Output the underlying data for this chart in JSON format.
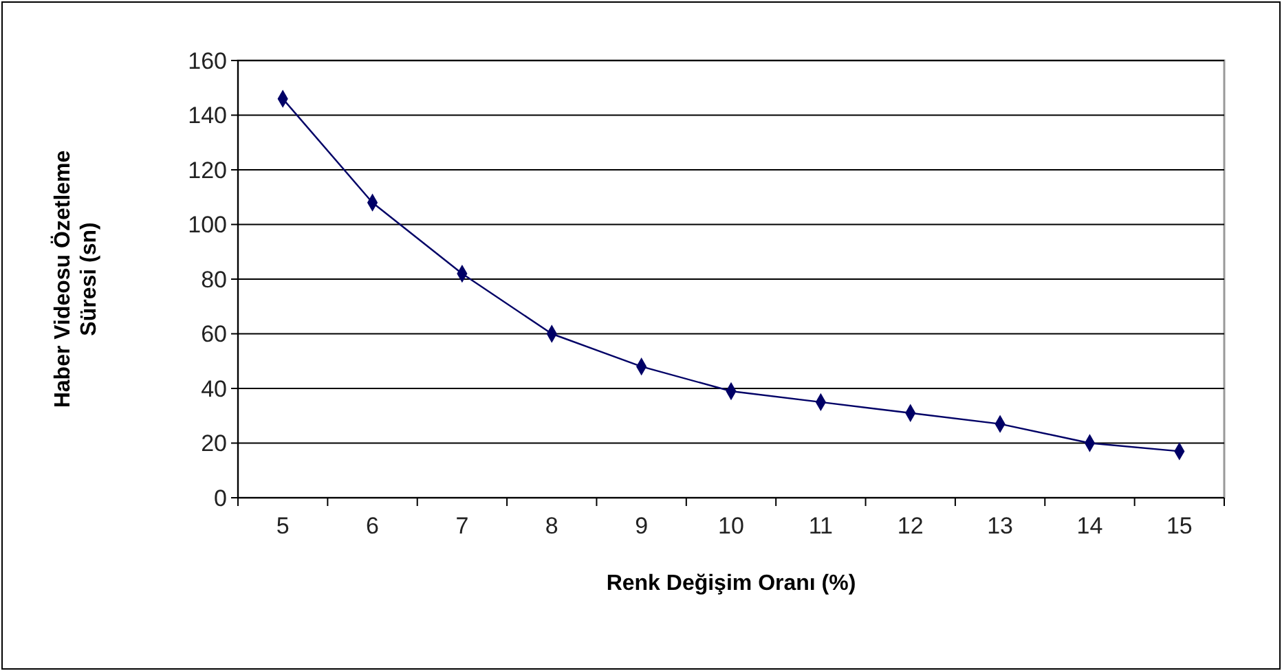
{
  "chart_data": {
    "type": "line",
    "xlabel": "Renk Değişim Oranı (%)",
    "ylabel": "Haber Videosu Özetleme\nSüresi (sn)",
    "categories": [
      "5",
      "6",
      "7",
      "8",
      "9",
      "10",
      "11",
      "12",
      "13",
      "14",
      "15"
    ],
    "series": [
      {
        "color": "#000066",
        "values": [
          146,
          108,
          82,
          60,
          48,
          39,
          35,
          31,
          27,
          20,
          17
        ]
      }
    ],
    "ylim": [
      0,
      160
    ],
    "yticks": [
      0,
      20,
      40,
      60,
      80,
      100,
      120,
      140,
      160
    ],
    "grid": "y",
    "marker": "diamond",
    "line_style": "solid"
  }
}
